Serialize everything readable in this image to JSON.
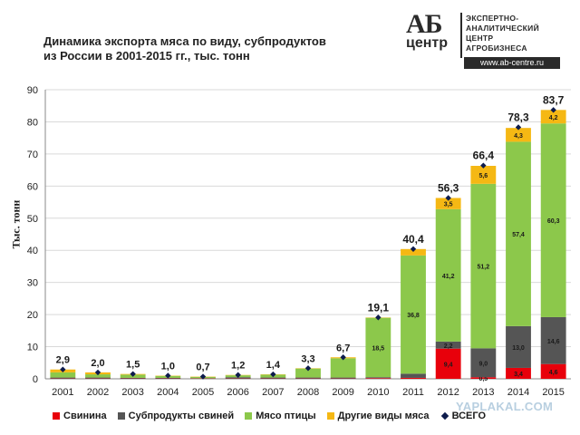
{
  "header": {
    "title_line1": "Динамика экспорта мяса по виду, субпродуктов",
    "title_line2": "из России в 2001-2015 гг., тыс. тонн"
  },
  "logo": {
    "mark_top": "АБ",
    "mark_bottom": "центр",
    "text_lines": [
      "ЭКСПЕРТНО-",
      "АНАЛИТИЧЕСКИЙ",
      "ЦЕНТР",
      "АГРОБИЗНЕСА"
    ],
    "url": "www.ab-centre.ru"
  },
  "watermark": "YAPLAKAL.COM",
  "colors": {
    "pork": "#e8000b",
    "offal": "#555555",
    "poultry": "#8cc84b",
    "other": "#f5b814",
    "total": "#0d1b4c",
    "grid": "#d9d9d9",
    "axis": "#888888"
  },
  "chart_data": {
    "type": "bar",
    "stacked": true,
    "title": "Динамика экспорта мяса по виду, субпродуктов из России в 2001-2015 гг., тыс. тонн",
    "ylabel": "Тыс. тонн",
    "xlabel": "",
    "ylim": [
      0,
      90
    ],
    "yticks": [
      0,
      10,
      20,
      30,
      40,
      50,
      60,
      70,
      80,
      90
    ],
    "grid": true,
    "legend_position": "bottom",
    "categories": [
      "2001",
      "2002",
      "2003",
      "2004",
      "2005",
      "2006",
      "2007",
      "2008",
      "2009",
      "2010",
      "2011",
      "2012",
      "2013",
      "2014",
      "2015"
    ],
    "series": [
      {
        "name": "Свинина",
        "color_key": "pork",
        "values": [
          0.1,
          0.1,
          0.1,
          0.1,
          0.1,
          0.1,
          0.1,
          0.1,
          0.1,
          0.2,
          0.3,
          9.4,
          0.5,
          3.4,
          4.6
        ],
        "labels": [
          "",
          "",
          "",
          "",
          "",
          "",
          "",
          "",
          "",
          "",
          "",
          "9,4",
          "0,5",
          "3,4",
          "4,6"
        ]
      },
      {
        "name": "Субпродукты свиней",
        "color_key": "offal",
        "values": [
          0.3,
          0.3,
          0.2,
          0.2,
          0.1,
          0.4,
          0.3,
          0.3,
          0.3,
          0.3,
          1.3,
          2.2,
          9.0,
          13.0,
          14.6
        ],
        "labels": [
          "",
          "",
          "",
          "",
          "",
          "",
          "",
          "",
          "",
          "",
          "",
          "2,2",
          "9,0",
          "13,0",
          "14,6"
        ]
      },
      {
        "name": "Мясо птицы",
        "color_key": "poultry",
        "values": [
          1.6,
          1.0,
          1.0,
          0.6,
          0.4,
          0.6,
          0.9,
          2.8,
          6.0,
          18.5,
          36.8,
          41.2,
          51.2,
          57.4,
          60.3
        ],
        "labels": [
          "",
          "",
          "",
          "",
          "",
          "",
          "",
          "",
          "",
          "18,5",
          "36,8",
          "41,2",
          "51,2",
          "57,4",
          "60,3"
        ]
      },
      {
        "name": "Другие виды мяса",
        "color_key": "other",
        "values": [
          0.9,
          0.6,
          0.2,
          0.1,
          0.1,
          0.1,
          0.1,
          0.1,
          0.3,
          0.1,
          2.0,
          3.5,
          5.6,
          4.3,
          4.2
        ],
        "labels": [
          "",
          "",
          "",
          "",
          "",
          "",
          "",
          "",
          "",
          "",
          "",
          "3,5",
          "5,6",
          "4,3",
          "4,2"
        ]
      }
    ],
    "total": {
      "name": "ВСЕГО",
      "color_key": "total",
      "values": [
        2.9,
        2.0,
        1.5,
        1.0,
        0.7,
        1.2,
        1.4,
        3.3,
        6.7,
        19.1,
        40.4,
        56.3,
        66.4,
        78.3,
        83.7
      ],
      "labels": [
        "2,9",
        "2,0",
        "1,5",
        "1,0",
        "0,7",
        "1,2",
        "1,4",
        "3,3",
        "6,7",
        "19,1",
        "40,4",
        "56,3",
        "66,4",
        "78,3",
        "83,7"
      ]
    }
  }
}
